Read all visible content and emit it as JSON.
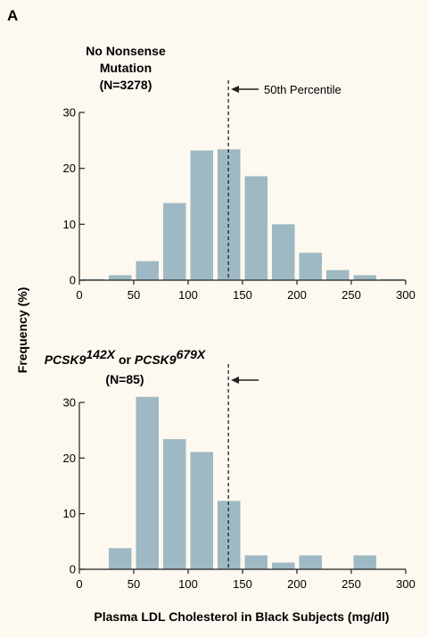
{
  "panel_label": "A",
  "annotation": "50th Percentile",
  "chart_data": [
    {
      "type": "bar",
      "title": [
        "No Nonsense",
        "Mutation",
        "(N=3278)"
      ],
      "xlabel": "Plasma LDL Cholesterol in Black Subjects (mg/dl)",
      "ylabel": "Frequency (%)",
      "xlim": [
        0,
        300
      ],
      "ylim": [
        0,
        30
      ],
      "xticks": [
        0,
        50,
        100,
        150,
        200,
        250,
        300
      ],
      "yticks": [
        0,
        10,
        20,
        30
      ],
      "bin_width": 25,
      "x": [
        12.5,
        37.5,
        62.5,
        87.5,
        112.5,
        137.5,
        162.5,
        187.5,
        212.5,
        237.5,
        262.5,
        287.5
      ],
      "values": [
        0.2,
        0.9,
        3.4,
        13.8,
        23.2,
        23.4,
        18.6,
        10.0,
        4.9,
        1.8,
        0.9,
        0.2
      ],
      "median_line": 137,
      "bar_color": "#9eb9c3",
      "grid": false
    },
    {
      "type": "bar",
      "title": {
        "part1": "PCSK9",
        "sup1": "142X",
        "mid": " or ",
        "part2": "PCSK9",
        "sup2": "679X",
        "n": "(N=85)"
      },
      "xlabel": "Plasma LDL Cholesterol in Black Subjects (mg/dl)",
      "ylabel": "Frequency (%)",
      "xlim": [
        0,
        300
      ],
      "ylim": [
        0,
        30
      ],
      "xticks": [
        0,
        50,
        100,
        150,
        200,
        250,
        300
      ],
      "yticks": [
        0,
        10,
        20,
        30
      ],
      "bin_width": 25,
      "x": [
        37.5,
        62.5,
        87.5,
        112.5,
        137.5,
        162.5,
        187.5,
        212.5,
        262.5
      ],
      "values": [
        3.8,
        31.0,
        23.4,
        21.1,
        12.3,
        2.5,
        1.2,
        2.5,
        2.5
      ],
      "median_line": 137,
      "bar_color": "#9eb9c3",
      "grid": false
    }
  ]
}
